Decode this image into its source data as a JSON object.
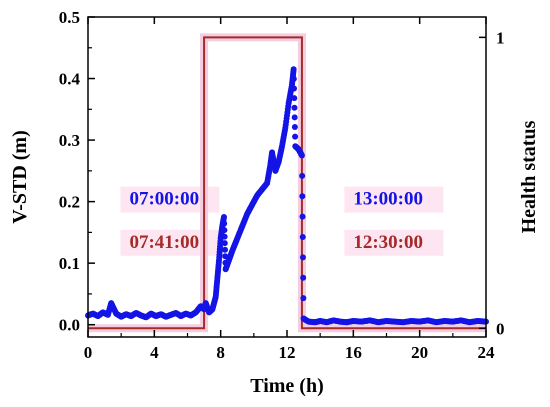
{
  "chart_data": {
    "type": "line",
    "xlabel": "Time (h)",
    "ylabel": "V-STD (m)",
    "y2label": "Health status",
    "xlim": [
      0,
      24
    ],
    "ylim": [
      -0.02,
      0.5
    ],
    "y2lim": [
      -0.03,
      1.07
    ],
    "xticks": [
      0,
      4,
      8,
      12,
      16,
      20,
      24
    ],
    "yticks": [
      0.0,
      0.1,
      0.2,
      0.3,
      0.4,
      0.5
    ],
    "y2ticks": [
      0,
      1
    ],
    "xtick_labels": [
      "0",
      "4",
      "8",
      "12",
      "16",
      "20",
      "24"
    ],
    "ytick_labels": [
      "0.0",
      "0.1",
      "0.2",
      "0.3",
      "0.4",
      "0.5"
    ],
    "y2tick_labels": [
      "0",
      "1"
    ],
    "grid": false,
    "series": [
      {
        "type": "scatter",
        "color": "#1414e6",
        "points": [
          [
            0.0,
            0.015
          ],
          [
            0.3,
            0.018
          ],
          [
            0.6,
            0.014
          ],
          [
            0.9,
            0.02
          ],
          [
            1.2,
            0.016
          ],
          [
            1.4,
            0.035
          ],
          [
            1.7,
            0.018
          ],
          [
            2.0,
            0.013
          ],
          [
            2.3,
            0.017
          ],
          [
            2.6,
            0.014
          ],
          [
            2.9,
            0.019
          ],
          [
            3.2,
            0.015
          ],
          [
            3.5,
            0.012
          ],
          [
            3.8,
            0.018
          ],
          [
            4.1,
            0.014
          ],
          [
            4.4,
            0.017
          ],
          [
            4.7,
            0.013
          ],
          [
            5.0,
            0.016
          ],
          [
            5.3,
            0.019
          ],
          [
            5.6,
            0.014
          ],
          [
            5.9,
            0.018
          ],
          [
            6.2,
            0.015
          ],
          [
            6.5,
            0.02
          ],
          [
            6.8,
            0.03
          ],
          [
            7.0,
            0.025
          ],
          [
            7.1,
            0.035
          ],
          [
            7.3,
            0.02
          ],
          [
            7.5,
            0.025
          ],
          [
            7.7,
            0.045
          ],
          [
            7.8,
            0.075
          ],
          [
            7.9,
            0.105
          ],
          [
            8.0,
            0.14
          ],
          [
            8.1,
            0.16
          ],
          [
            8.2,
            0.175
          ],
          [
            8.3,
            0.09
          ],
          [
            8.5,
            0.105
          ],
          [
            8.7,
            0.12
          ],
          [
            9.0,
            0.14
          ],
          [
            9.3,
            0.16
          ],
          [
            9.6,
            0.18
          ],
          [
            9.9,
            0.195
          ],
          [
            10.2,
            0.21
          ],
          [
            10.5,
            0.22
          ],
          [
            10.8,
            0.23
          ],
          [
            11.0,
            0.26
          ],
          [
            11.1,
            0.28
          ],
          [
            11.3,
            0.25
          ],
          [
            11.5,
            0.265
          ],
          [
            11.7,
            0.29
          ],
          [
            11.9,
            0.32
          ],
          [
            12.1,
            0.36
          ],
          [
            12.3,
            0.39
          ],
          [
            12.4,
            0.415
          ],
          [
            12.5,
            0.29
          ],
          [
            12.7,
            0.285
          ],
          [
            12.9,
            0.275
          ],
          [
            13.0,
            0.01
          ],
          [
            13.3,
            0.005
          ],
          [
            13.7,
            0.004
          ],
          [
            14.0,
            0.006
          ],
          [
            14.4,
            0.004
          ],
          [
            14.8,
            0.007
          ],
          [
            15.2,
            0.005
          ],
          [
            15.6,
            0.004
          ],
          [
            16.0,
            0.006
          ],
          [
            16.5,
            0.005
          ],
          [
            17.0,
            0.007
          ],
          [
            17.5,
            0.004
          ],
          [
            18.0,
            0.006
          ],
          [
            18.5,
            0.005
          ],
          [
            19.0,
            0.004
          ],
          [
            19.5,
            0.006
          ],
          [
            20.0,
            0.005
          ],
          [
            20.5,
            0.007
          ],
          [
            21.0,
            0.004
          ],
          [
            21.5,
            0.006
          ],
          [
            22.0,
            0.005
          ],
          [
            22.5,
            0.007
          ],
          [
            23.0,
            0.004
          ],
          [
            23.5,
            0.006
          ],
          [
            24.0,
            0.005
          ]
        ]
      },
      {
        "type": "step",
        "axis": "y2",
        "color": "#a52a2a",
        "points": [
          [
            0,
            0
          ],
          [
            7.0,
            0
          ],
          [
            7.0,
            1
          ],
          [
            12.9,
            1
          ],
          [
            12.9,
            0
          ],
          [
            24,
            0
          ]
        ]
      }
    ],
    "annotations": [
      {
        "text": "07:00:00",
        "x": 2.5,
        "y": 0.195,
        "color": "#1414e6"
      },
      {
        "text": "07:41:00",
        "x": 2.5,
        "y": 0.125,
        "color": "#a52a2a"
      },
      {
        "text": "13:00:00",
        "x": 16.0,
        "y": 0.195,
        "color": "#1414e6"
      },
      {
        "text": "12:30:00",
        "x": 16.0,
        "y": 0.125,
        "color": "#a52a2a"
      }
    ]
  }
}
